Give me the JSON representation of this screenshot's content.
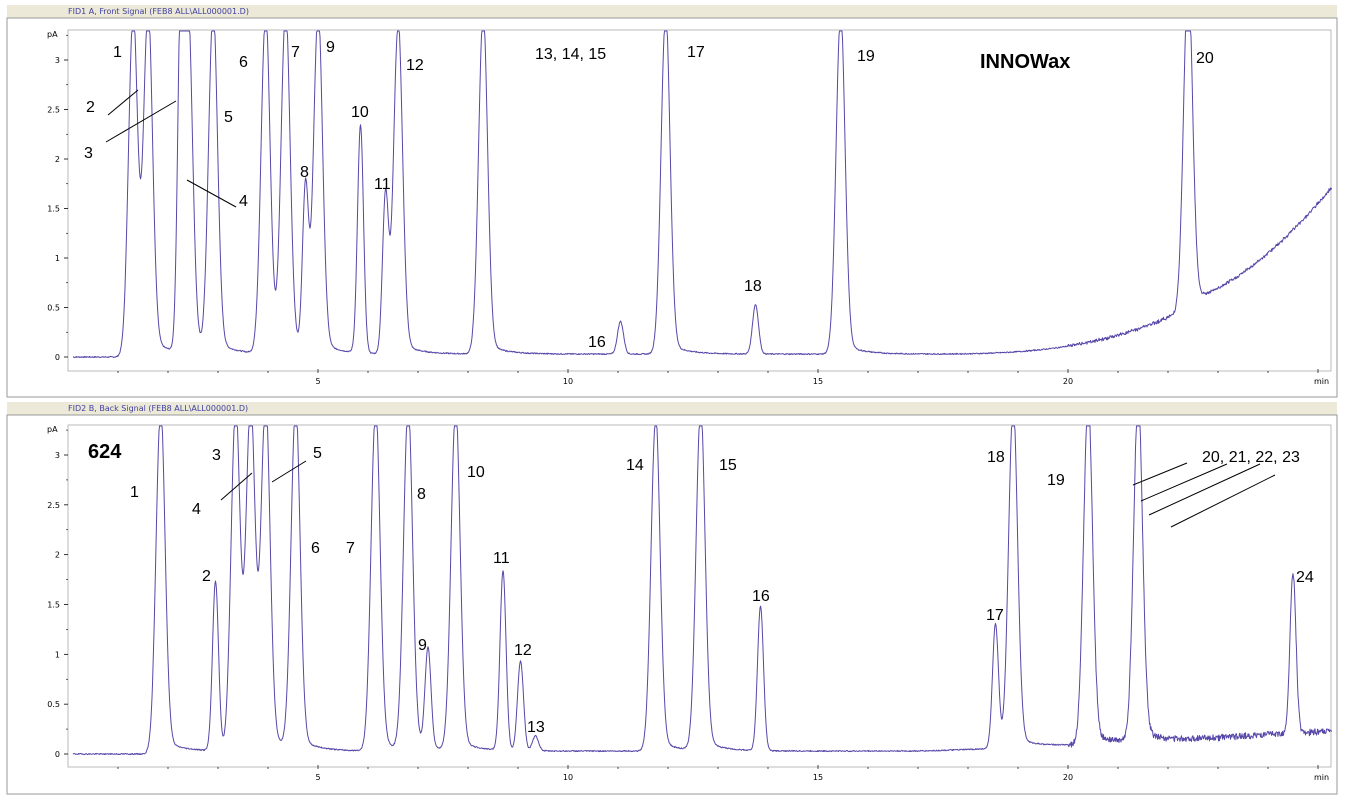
{
  "panels": [
    {
      "title": "FID1 A, Front Signal (FEB8 ALL\\ALL000001.D)",
      "column_label": "INNOWax",
      "chart_data": {
        "type": "line",
        "title": "FID1 A, Front Signal (FEB8 ALL\\ALL000001.D)",
        "xlabel": "min",
        "ylabel": "pA",
        "xlim": [
          0,
          25.3
        ],
        "ylim": [
          -0.1,
          3.3
        ],
        "x_ticks": [
          5,
          10,
          15,
          20
        ],
        "y_ticks": [
          0,
          0.5,
          1,
          1.5,
          2,
          2.5,
          3
        ],
        "x_tick_labels": [
          "5",
          "10",
          "15",
          "20"
        ],
        "y_tick_labels": [
          "0",
          "0.5",
          "1",
          "1.5",
          "2",
          "2.5",
          "3"
        ],
        "axis_end_label": "min",
        "grid": false,
        "peaks": [
          {
            "label": "1",
            "rt": 1.3,
            "height": 3.4
          },
          {
            "label": "2",
            "rt": 1.6,
            "height": 3.4
          },
          {
            "label": "3",
            "rt": 2.25,
            "height": 3.0
          },
          {
            "label": "4",
            "rt": 2.4,
            "height": 3.4
          },
          {
            "label": "5",
            "rt": 2.9,
            "height": 3.4
          },
          {
            "label": "6",
            "rt": 3.95,
            "height": 3.4
          },
          {
            "label": "7",
            "rt": 4.35,
            "height": 3.4
          },
          {
            "label": "8",
            "rt": 4.75,
            "height": 1.65
          },
          {
            "label": "9",
            "rt": 5.0,
            "height": 3.4
          },
          {
            "label": "10",
            "rt": 5.85,
            "height": 2.3
          },
          {
            "label": "11",
            "rt": 6.35,
            "height": 1.6
          },
          {
            "label": "12",
            "rt": 6.6,
            "height": 3.3
          },
          {
            "label": "13, 14, 15",
            "rt": 8.3,
            "height": 3.4
          },
          {
            "label": "16",
            "rt": 11.05,
            "height": 0.33
          },
          {
            "label": "17",
            "rt": 11.95,
            "height": 3.4
          },
          {
            "label": "18",
            "rt": 13.75,
            "height": 0.5
          },
          {
            "label": "19",
            "rt": 15.45,
            "height": 3.4
          },
          {
            "label": "20",
            "rt": 22.4,
            "height": 3.3
          }
        ],
        "baseline": {
          "start_level": 0.0,
          "end_level": 1.7
        }
      }
    },
    {
      "title": "FID2 B, Back Signal (FEB8 ALL\\ALL000001.D)",
      "column_label": "624",
      "chart_data": {
        "type": "line",
        "title": "FID2 B, Back Signal (FEB8 ALL\\ALL000001.D)",
        "xlabel": "min",
        "ylabel": "pA",
        "xlim": [
          0,
          25.3
        ],
        "ylim": [
          -0.1,
          3.3
        ],
        "x_ticks": [
          5,
          10,
          15,
          20
        ],
        "y_ticks": [
          0,
          0.5,
          1,
          1.5,
          2,
          2.5,
          3
        ],
        "x_tick_labels": [
          "5",
          "10",
          "15",
          "20"
        ],
        "y_tick_labels": [
          "0",
          "0.5",
          "1",
          "1.5",
          "2",
          "2.5",
          "3"
        ],
        "axis_end_label": "min",
        "grid": false,
        "peaks": [
          {
            "label": "1",
            "rt": 1.85,
            "height": 3.4
          },
          {
            "label": "2",
            "rt": 2.95,
            "height": 1.7
          },
          {
            "label": "3",
            "rt": 3.35,
            "height": 3.4
          },
          {
            "label": "4",
            "rt": 3.65,
            "height": 3.4
          },
          {
            "label": "5",
            "rt": 3.95,
            "height": 3.4
          },
          {
            "label": "6",
            "rt": 4.55,
            "height": 3.4
          },
          {
            "label": "7",
            "rt": 6.15,
            "height": 3.4
          },
          {
            "label": "8",
            "rt": 6.8,
            "height": 3.4
          },
          {
            "label": "9",
            "rt": 7.2,
            "height": 1.0
          },
          {
            "label": "10",
            "rt": 7.75,
            "height": 3.4
          },
          {
            "label": "11",
            "rt": 8.7,
            "height": 1.8
          },
          {
            "label": "12",
            "rt": 9.05,
            "height": 0.9
          },
          {
            "label": "13",
            "rt": 9.35,
            "height": 0.15
          },
          {
            "label": "14",
            "rt": 11.75,
            "height": 3.3
          },
          {
            "label": "15",
            "rt": 12.65,
            "height": 3.4
          },
          {
            "label": "16",
            "rt": 13.85,
            "height": 1.45
          },
          {
            "label": "17",
            "rt": 18.55,
            "height": 1.25
          },
          {
            "label": "18",
            "rt": 18.9,
            "height": 3.4
          },
          {
            "label": "19",
            "rt": 20.4,
            "height": 3.4
          },
          {
            "label": "20, 21, 22, 23",
            "rt": 21.4,
            "height": 3.4
          },
          {
            "label": "24",
            "rt": 24.5,
            "height": 1.6
          }
        ],
        "baseline": {
          "start_level": 0.0,
          "end_level": 0.2
        }
      }
    }
  ]
}
